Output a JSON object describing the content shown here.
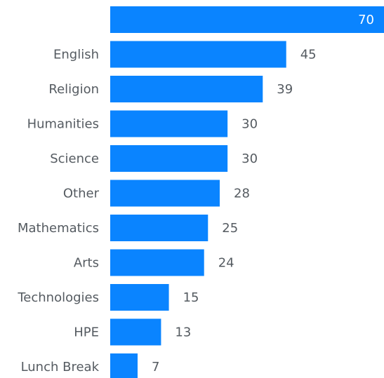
{
  "chart_data": {
    "type": "bar",
    "orientation": "horizontal",
    "categories": [
      "",
      "English",
      "Religion",
      "Humanities",
      "Science",
      "Other",
      "Mathematics",
      "Arts",
      "Technologies",
      "HPE",
      "Lunch Break"
    ],
    "values": [
      70,
      45,
      39,
      30,
      30,
      28,
      25,
      24,
      15,
      13,
      7
    ],
    "xlim": [
      0,
      70
    ],
    "bar_color": "#0a84ff",
    "label_color": "#555b61",
    "grid": false,
    "legend": "none"
  }
}
